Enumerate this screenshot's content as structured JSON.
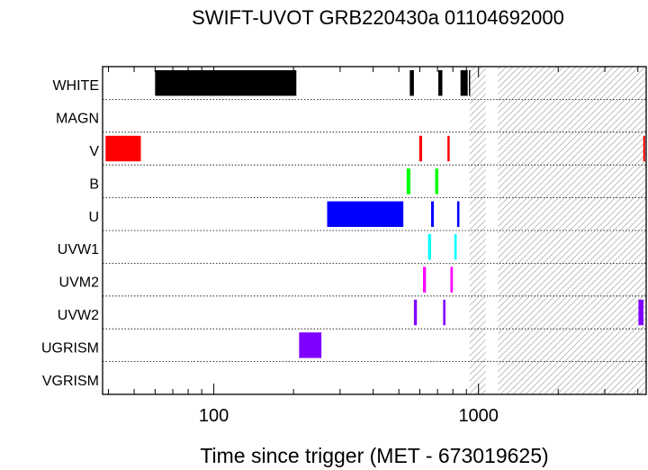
{
  "chart_data": {
    "type": "timeline",
    "title": "SWIFT-UVOT GRB220430a 01104692000",
    "xlabel": "Time since trigger (MET - 673019625)",
    "x_scale": "log",
    "xlim": [
      38,
      4300
    ],
    "x_ticks": [
      {
        "value": 100,
        "label": "100"
      },
      {
        "value": 1000,
        "label": "1000"
      }
    ],
    "hatched_intervals": [
      [
        925,
        1065
      ],
      [
        1185,
        4300
      ]
    ],
    "filters": [
      {
        "name": "WHITE",
        "color": "#000000",
        "intervals": [
          [
            60,
            205
          ],
          [
            550,
            570
          ],
          [
            705,
            730
          ],
          [
            855,
            910
          ],
          [
            920,
            930
          ]
        ]
      },
      {
        "name": "MAGN",
        "color": "#000000",
        "intervals": []
      },
      {
        "name": "V",
        "color": "#ff0000",
        "intervals": [
          [
            39,
            53
          ],
          [
            597,
            612
          ],
          [
            763,
            778
          ],
          [
            4190,
            4260
          ]
        ]
      },
      {
        "name": "B",
        "color": "#00ff00",
        "intervals": [
          [
            535,
            553
          ],
          [
            686,
            704
          ]
        ]
      },
      {
        "name": "U",
        "color": "#0000ff",
        "intervals": [
          [
            268,
            520
          ],
          [
            662,
            678
          ],
          [
            830,
            847
          ]
        ]
      },
      {
        "name": "UVW1",
        "color": "#00ffff",
        "intervals": [
          [
            645,
            662
          ],
          [
            810,
            827
          ]
        ]
      },
      {
        "name": "UVM2",
        "color": "#ff00ff",
        "intervals": [
          [
            617,
            633
          ],
          [
            783,
            800
          ]
        ]
      },
      {
        "name": "UVW2",
        "color": "#8000ff",
        "intervals": [
          [
            570,
            585
          ],
          [
            735,
            750
          ],
          [
            4020,
            4200
          ]
        ]
      },
      {
        "name": "UGRISM",
        "color": "#8000ff",
        "intervals": [
          [
            210,
            255
          ]
        ]
      },
      {
        "name": "VGRISM",
        "color": "#000000",
        "intervals": []
      }
    ]
  }
}
